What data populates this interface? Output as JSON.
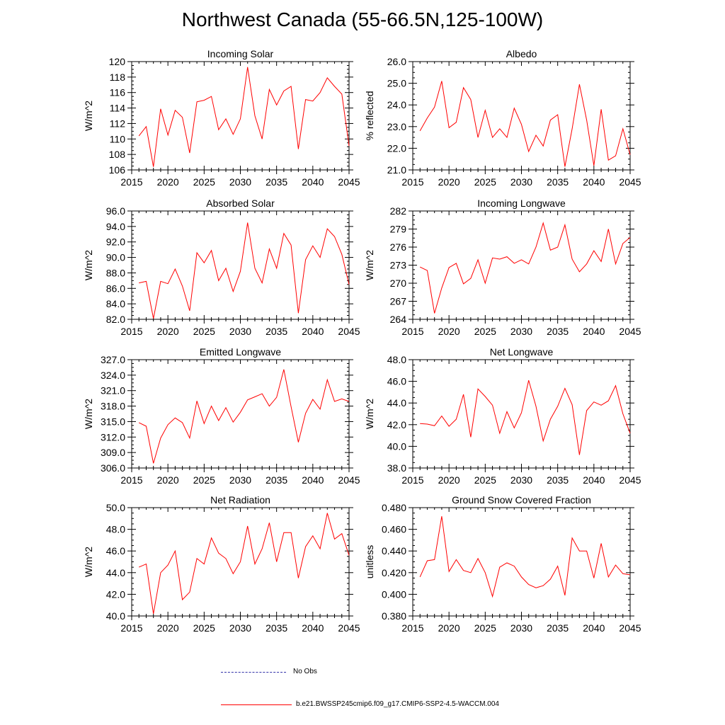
{
  "title": "Northwest Canada (55-66.5N,125-100W)",
  "legend": {
    "obs_label": "No Obs",
    "obs_color": "#3333aa",
    "model_label": "b.e21.BWSSP245cmip6.f09_g17.CMIP6-SSP2-4.5-WACCM.004",
    "model_color": "#ff0000"
  },
  "chart_data": [
    {
      "type": "line",
      "title": "Incoming Solar",
      "ylabel": "W/m^2",
      "xlim": [
        2015,
        2045
      ],
      "ylim": [
        106,
        120
      ],
      "xticks": [
        "2015",
        "2020",
        "2025",
        "2030",
        "2035",
        "2040",
        "2045"
      ],
      "yticks": [
        "106",
        "108",
        "110",
        "112",
        "114",
        "116",
        "118",
        "120"
      ],
      "x": [
        2016,
        2017,
        2018,
        2019,
        2020,
        2021,
        2022,
        2023,
        2024,
        2025,
        2026,
        2027,
        2028,
        2029,
        2030,
        2031,
        2032,
        2033,
        2034,
        2035,
        2036,
        2037,
        2038,
        2039,
        2040,
        2041,
        2042,
        2043,
        2044,
        2045
      ],
      "values": [
        110.4,
        111.6,
        106.4,
        113.9,
        110.5,
        113.7,
        112.8,
        108.2,
        114.8,
        115.0,
        115.5,
        111.2,
        112.6,
        110.6,
        112.6,
        119.3,
        113.0,
        110.0,
        116.4,
        114.4,
        116.2,
        116.8,
        108.7,
        115.1,
        114.9,
        116.0,
        117.9,
        116.8,
        115.8,
        109.1
      ]
    },
    {
      "type": "line",
      "title": "Albedo",
      "ylabel": "% reflected",
      "xlim": [
        2015,
        2045
      ],
      "ylim": [
        21.0,
        26.0
      ],
      "xticks": [
        "2015",
        "2020",
        "2025",
        "2030",
        "2035",
        "2040",
        "2045"
      ],
      "yticks": [
        "21.0",
        "22.0",
        "23.0",
        "24.0",
        "25.0",
        "26.0"
      ],
      "x": [
        2016,
        2017,
        2018,
        2019,
        2020,
        2021,
        2022,
        2023,
        2024,
        2025,
        2026,
        2027,
        2028,
        2029,
        2030,
        2031,
        2032,
        2033,
        2034,
        2035,
        2036,
        2037,
        2038,
        2039,
        2040,
        2041,
        2042,
        2043,
        2044,
        2045
      ],
      "values": [
        22.8,
        23.4,
        23.9,
        25.1,
        22.95,
        23.2,
        24.8,
        24.25,
        22.5,
        23.75,
        22.5,
        22.9,
        22.5,
        23.85,
        23.1,
        21.85,
        22.6,
        22.1,
        23.3,
        23.55,
        21.15,
        22.9,
        24.95,
        23.3,
        21.2,
        23.8,
        21.45,
        21.65,
        22.9,
        21.7
      ]
    },
    {
      "type": "line",
      "title": "Absorbed Solar",
      "ylabel": "W/m^2",
      "xlim": [
        2015,
        2045
      ],
      "ylim": [
        82.0,
        96.0
      ],
      "xticks": [
        "2015",
        "2020",
        "2025",
        "2030",
        "2035",
        "2040",
        "2045"
      ],
      "yticks": [
        "82.0",
        "84.0",
        "86.0",
        "88.0",
        "90.0",
        "92.0",
        "94.0",
        "96.0"
      ],
      "x": [
        2016,
        2017,
        2018,
        2019,
        2020,
        2021,
        2022,
        2023,
        2024,
        2025,
        2026,
        2027,
        2028,
        2029,
        2030,
        2031,
        2032,
        2033,
        2034,
        2035,
        2036,
        2037,
        2038,
        2039,
        2040,
        2041,
        2042,
        2043,
        2044,
        2045
      ],
      "values": [
        86.7,
        86.9,
        82.1,
        86.9,
        86.6,
        88.5,
        86.3,
        83.1,
        90.6,
        89.3,
        90.9,
        87.0,
        88.6,
        85.6,
        88.2,
        94.5,
        88.6,
        86.7,
        91.1,
        88.6,
        93.1,
        91.6,
        82.8,
        89.7,
        91.5,
        90.0,
        93.7,
        92.7,
        90.4,
        86.5
      ]
    },
    {
      "type": "line",
      "title": "Incoming Longwave",
      "ylabel": "W/m^2",
      "xlim": [
        2015,
        2045
      ],
      "ylim": [
        264,
        282
      ],
      "xticks": [
        "2015",
        "2020",
        "2025",
        "2030",
        "2035",
        "2040",
        "2045"
      ],
      "yticks": [
        "264",
        "267",
        "270",
        "273",
        "276",
        "279",
        "282"
      ],
      "x": [
        2016,
        2017,
        2018,
        2019,
        2020,
        2021,
        2022,
        2023,
        2024,
        2025,
        2026,
        2027,
        2028,
        2029,
        2030,
        2031,
        2032,
        2033,
        2034,
        2035,
        2036,
        2037,
        2038,
        2039,
        2040,
        2041,
        2042,
        2043,
        2044,
        2045
      ],
      "values": [
        272.7,
        272.1,
        265.0,
        269.2,
        272.6,
        273.3,
        269.9,
        270.8,
        273.9,
        270.0,
        274.2,
        274.0,
        274.4,
        273.3,
        273.9,
        273.2,
        276.0,
        280.0,
        275.5,
        276.0,
        279.7,
        274.0,
        271.9,
        273.2,
        275.4,
        273.6,
        279.0,
        273.2,
        276.6,
        277.6
      ]
    },
    {
      "type": "line",
      "title": "Emitted Longwave",
      "ylabel": "W/m^2",
      "xlim": [
        2015,
        2045
      ],
      "ylim": [
        306.0,
        327.0
      ],
      "xticks": [
        "2015",
        "2020",
        "2025",
        "2030",
        "2035",
        "2040",
        "2045"
      ],
      "yticks": [
        "306.0",
        "309.0",
        "312.0",
        "315.0",
        "318.0",
        "321.0",
        "324.0",
        "327.0"
      ],
      "x": [
        2016,
        2017,
        2018,
        2019,
        2020,
        2021,
        2022,
        2023,
        2024,
        2025,
        2026,
        2027,
        2028,
        2029,
        2030,
        2031,
        2032,
        2033,
        2034,
        2035,
        2036,
        2037,
        2038,
        2039,
        2040,
        2041,
        2042,
        2043,
        2044,
        2045
      ],
      "values": [
        314.8,
        314.1,
        306.9,
        311.8,
        314.4,
        315.7,
        314.8,
        311.8,
        319.0,
        314.6,
        318.0,
        315.2,
        317.7,
        314.9,
        316.8,
        319.2,
        319.8,
        320.4,
        318.0,
        319.7,
        325.1,
        317.9,
        311.0,
        316.6,
        319.3,
        317.4,
        323.1,
        318.9,
        319.4,
        318.9
      ]
    },
    {
      "type": "line",
      "title": "Net Longwave",
      "ylabel": "W/m^2",
      "xlim": [
        2015,
        2045
      ],
      "ylim": [
        38.0,
        48.0
      ],
      "xticks": [
        "2015",
        "2020",
        "2025",
        "2030",
        "2035",
        "2040",
        "2045"
      ],
      "yticks": [
        "38.0",
        "40.0",
        "42.0",
        "44.0",
        "46.0",
        "48.0"
      ],
      "x": [
        2016,
        2017,
        2018,
        2019,
        2020,
        2021,
        2022,
        2023,
        2024,
        2025,
        2026,
        2027,
        2028,
        2029,
        2030,
        2031,
        2032,
        2033,
        2034,
        2035,
        2036,
        2037,
        2038,
        2039,
        2040,
        2041,
        2042,
        2043,
        2044,
        2045
      ],
      "values": [
        42.1,
        42.05,
        41.9,
        42.8,
        41.85,
        42.5,
        44.8,
        40.85,
        45.3,
        44.6,
        43.8,
        41.2,
        43.2,
        41.7,
        43.1,
        46.1,
        43.7,
        40.5,
        42.5,
        43.7,
        45.35,
        43.85,
        39.2,
        43.3,
        44.1,
        43.8,
        44.2,
        45.6,
        43.0,
        41.2
      ]
    },
    {
      "type": "line",
      "title": "Net Radiation",
      "ylabel": "W/m^2",
      "xlim": [
        2015,
        2045
      ],
      "ylim": [
        40.0,
        50.0
      ],
      "xticks": [
        "2015",
        "2020",
        "2025",
        "2030",
        "2035",
        "2040",
        "2045"
      ],
      "yticks": [
        "40.0",
        "42.0",
        "44.0",
        "46.0",
        "48.0",
        "50.0"
      ],
      "x": [
        2016,
        2017,
        2018,
        2019,
        2020,
        2021,
        2022,
        2023,
        2024,
        2025,
        2026,
        2027,
        2028,
        2029,
        2030,
        2031,
        2032,
        2033,
        2034,
        2035,
        2036,
        2037,
        2038,
        2039,
        2040,
        2041,
        2042,
        2043,
        2044,
        2045
      ],
      "values": [
        44.5,
        44.8,
        40.2,
        44.0,
        44.7,
        46.0,
        41.5,
        42.2,
        45.3,
        44.8,
        47.2,
        45.8,
        45.3,
        43.9,
        45.0,
        48.3,
        44.8,
        46.2,
        48.6,
        45.0,
        47.7,
        47.7,
        43.5,
        46.4,
        47.4,
        46.2,
        49.5,
        47.1,
        47.6,
        45.6
      ]
    },
    {
      "type": "line",
      "title": "Ground Snow Covered Fraction",
      "ylabel": "unitless",
      "xlim": [
        2015,
        2045
      ],
      "ylim": [
        0.38,
        0.48
      ],
      "xticks": [
        "2015",
        "2020",
        "2025",
        "2030",
        "2035",
        "2040",
        "2045"
      ],
      "yticks": [
        "0.380",
        "0.400",
        "0.420",
        "0.440",
        "0.460",
        "0.480"
      ],
      "x": [
        2016,
        2017,
        2018,
        2019,
        2020,
        2021,
        2022,
        2023,
        2024,
        2025,
        2026,
        2027,
        2028,
        2029,
        2030,
        2031,
        2032,
        2033,
        2034,
        2035,
        2036,
        2037,
        2038,
        2039,
        2040,
        2041,
        2042,
        2043,
        2044,
        2045
      ],
      "values": [
        0.416,
        0.431,
        0.432,
        0.472,
        0.421,
        0.432,
        0.422,
        0.42,
        0.433,
        0.42,
        0.398,
        0.425,
        0.429,
        0.426,
        0.416,
        0.409,
        0.406,
        0.408,
        0.414,
        0.426,
        0.399,
        0.452,
        0.44,
        0.44,
        0.415,
        0.447,
        0.416,
        0.427,
        0.419,
        0.418
      ]
    }
  ]
}
